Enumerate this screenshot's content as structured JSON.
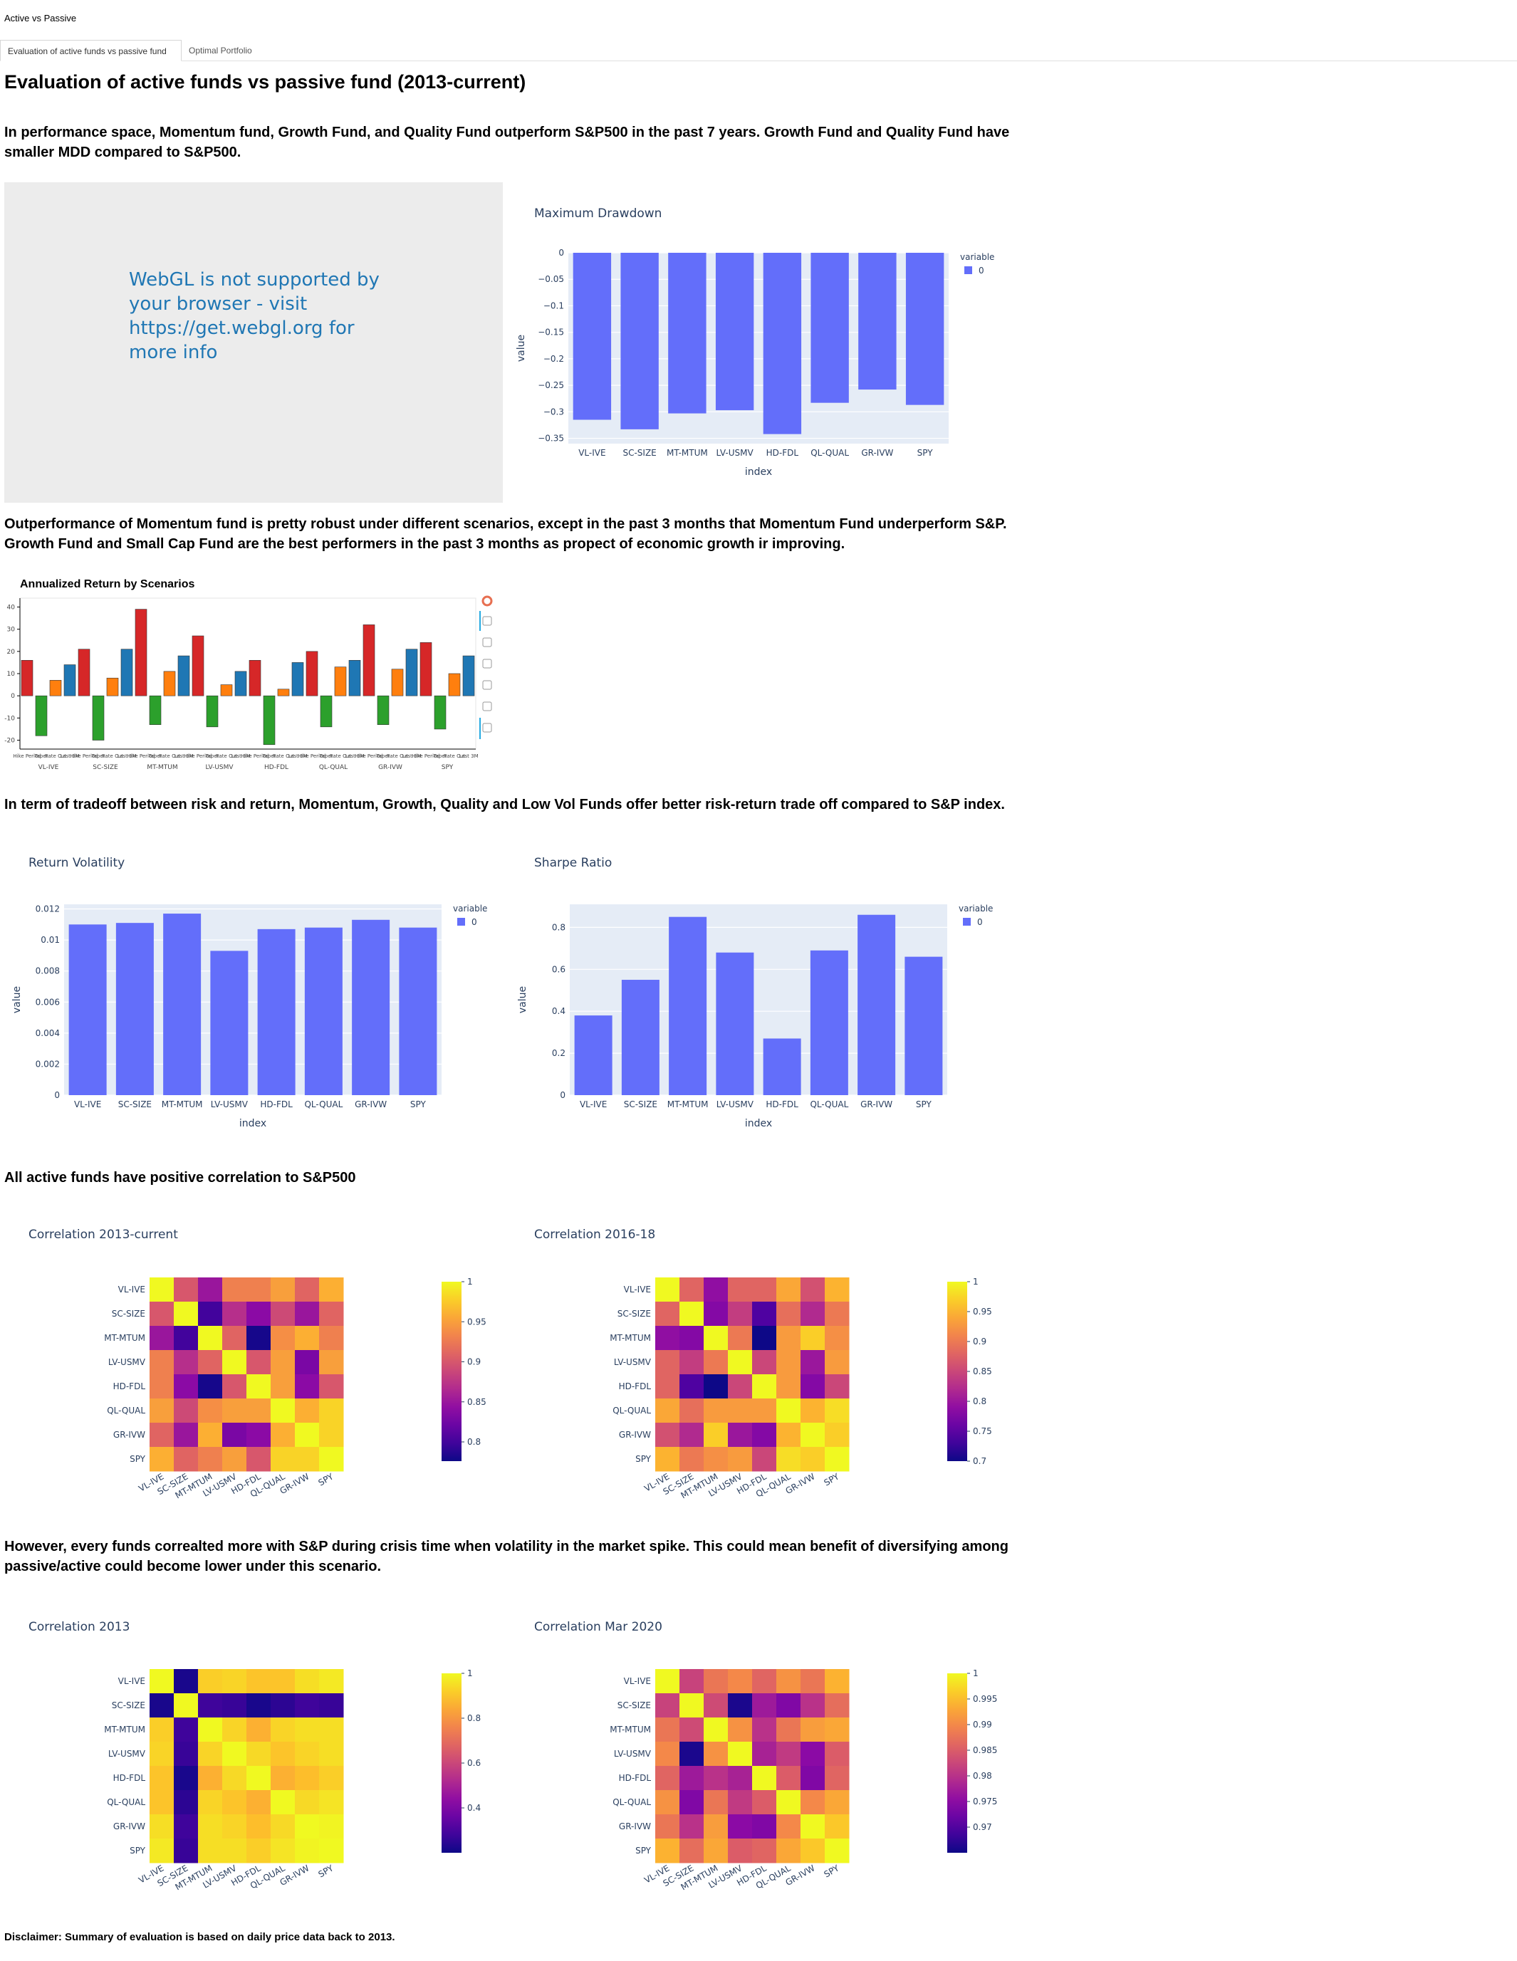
{
  "app": {
    "title": "Active vs Passive"
  },
  "tabs": [
    {
      "label": "Evaluation of active funds vs passive fund",
      "active": true
    },
    {
      "label": "Optimal Portfolio",
      "active": false
    }
  ],
  "page": {
    "heading": "Evaluation of active funds vs passive fund (2013-current)",
    "para1": "In performance space, Momentum fund, Growth Fund, and Quality Fund outperform S&P500 in the past 7 years. Growth Fund and Quality Fund have smaller MDD compared to S&P500.",
    "webgl_message": "WebGL is not supported by your browser - visit https://get.webgl.org for more info",
    "para2": "Outperformance of Momentum fund is pretty robust under different scenarios, except in the past 3 months that Momentum Fund underperform S&P. Growth Fund and Small Cap Fund are the best performers in the past 3 months as propect of economic growth ir improving.",
    "para3": "In term of tradeoff between risk and return, Momentum, Growth, Quality and Low Vol Funds offer better risk-return trade off compared to S&P index.",
    "para4": "All active funds have positive correlation to S&P500",
    "para5": "However, every funds correalted more with S&P during crisis time when volatility in the market spike. This could mean benefit of diversifying among passive/active could become lower under this scenario.",
    "disclaimer": "Disclaimer: Summary of evaluation is based on daily price data back to 2013."
  },
  "colors": {
    "plotly_bar": "#636efa",
    "plot_bg": "#e5ecf6",
    "text": "#2a3f5f",
    "scenario": [
      "#d62728",
      "#2ca02c",
      "#ff7f0e",
      "#1f77b4"
    ]
  },
  "chart_data": [
    {
      "id": "mdd",
      "type": "bar",
      "title": "Maximum Drawdown",
      "xlabel": "index",
      "ylabel": "value",
      "legend_title": "variable",
      "categories": [
        "VL-IVE",
        "SC-SIZE",
        "MT-MTUM",
        "LV-USMV",
        "HD-FDL",
        "QL-QUAL",
        "GR-IVW",
        "SPY"
      ],
      "series": [
        {
          "name": "0",
          "values": [
            -0.315,
            -0.333,
            -0.303,
            -0.297,
            -0.342,
            -0.283,
            -0.258,
            -0.287
          ]
        }
      ],
      "ylim": [
        -0.36,
        0.0
      ],
      "ticks": [
        0,
        -0.05,
        -0.1,
        -0.15,
        -0.2,
        -0.25,
        -0.3,
        -0.35
      ],
      "tick_labels": [
        "0",
        "−0.05",
        "−0.1",
        "−0.15",
        "−0.2",
        "−0.25",
        "−0.3",
        "−0.35"
      ]
    },
    {
      "id": "scenarios",
      "type": "bar",
      "title": "Annualized Return by Scenarios",
      "groups": [
        "VL-IVE",
        "SC-SIZE",
        "MT-MTUM",
        "LV-USMV",
        "HD-FDL",
        "QL-QUAL",
        "GR-IVW",
        "SPY"
      ],
      "sub_labels": [
        "Hike Period",
        "Taper",
        "Rate Cut",
        "Last 3M"
      ],
      "series": [
        {
          "values": [
            16,
            21,
            39,
            27,
            16,
            20,
            32,
            24
          ]
        },
        {
          "values": [
            -18,
            -20,
            -13,
            -14,
            -22,
            -14,
            -13,
            -15
          ]
        },
        {
          "values": [
            7,
            8,
            11,
            5,
            3,
            13,
            12,
            10
          ]
        },
        {
          "values": [
            14,
            21,
            18,
            11,
            15,
            16,
            21,
            18
          ]
        }
      ],
      "ylim": [
        -24,
        44
      ],
      "ticks": [
        40,
        30,
        20,
        10,
        0,
        -10,
        -20
      ]
    },
    {
      "id": "vol",
      "type": "bar",
      "title": "Return Volatility",
      "xlabel": "index",
      "ylabel": "value",
      "legend_title": "variable",
      "categories": [
        "VL-IVE",
        "SC-SIZE",
        "MT-MTUM",
        "LV-USMV",
        "HD-FDL",
        "QL-QUAL",
        "GR-IVW",
        "SPY"
      ],
      "series": [
        {
          "name": "0",
          "values": [
            0.011,
            0.0111,
            0.0117,
            0.0093,
            0.0107,
            0.0108,
            0.0113,
            0.0108
          ]
        }
      ],
      "ylim": [
        0,
        0.0123
      ],
      "ticks": [
        0,
        0.002,
        0.004,
        0.006,
        0.008,
        0.01,
        0.012
      ],
      "tick_labels": [
        "0",
        "0.002",
        "0.004",
        "0.006",
        "0.008",
        "0.01",
        "0.012"
      ]
    },
    {
      "id": "sharpe",
      "type": "bar",
      "title": "Sharpe Ratio",
      "xlabel": "index",
      "ylabel": "value",
      "legend_title": "variable",
      "categories": [
        "VL-IVE",
        "SC-SIZE",
        "MT-MTUM",
        "LV-USMV",
        "HD-FDL",
        "QL-QUAL",
        "GR-IVW",
        "SPY"
      ],
      "series": [
        {
          "name": "0",
          "values": [
            0.38,
            0.55,
            0.85,
            0.68,
            0.27,
            0.69,
            0.86,
            0.66
          ]
        }
      ],
      "ylim": [
        0,
        0.91
      ],
      "ticks": [
        0,
        0.2,
        0.4,
        0.6,
        0.8
      ],
      "tick_labels": [
        "0",
        "0.2",
        "0.4",
        "0.6",
        "0.8"
      ]
    },
    {
      "id": "corr1",
      "type": "heatmap",
      "title": "Correlation 2013-current",
      "labels": [
        "VL-IVE",
        "SC-SIZE",
        "MT-MTUM",
        "LV-USMV",
        "HD-FDL",
        "QL-QUAL",
        "GR-IVW",
        "SPY"
      ],
      "zrange": [
        0.776,
        1.0
      ],
      "colorbar_ticks": [
        1,
        0.95,
        0.9,
        0.85,
        0.8
      ],
      "values": [
        [
          1.0,
          0.9,
          0.85,
          0.93,
          0.93,
          0.95,
          0.91,
          0.96
        ],
        [
          0.9,
          1.0,
          0.8,
          0.87,
          0.84,
          0.89,
          0.85,
          0.91
        ],
        [
          0.85,
          0.8,
          1.0,
          0.91,
          0.78,
          0.94,
          0.96,
          0.93
        ],
        [
          0.93,
          0.87,
          0.91,
          1.0,
          0.9,
          0.95,
          0.83,
          0.95
        ],
        [
          0.93,
          0.84,
          0.78,
          0.9,
          1.0,
          0.95,
          0.84,
          0.9
        ],
        [
          0.95,
          0.89,
          0.94,
          0.95,
          0.95,
          1.0,
          0.96,
          0.98
        ],
        [
          0.91,
          0.85,
          0.96,
          0.83,
          0.84,
          0.96,
          1.0,
          0.98
        ],
        [
          0.96,
          0.91,
          0.93,
          0.95,
          0.9,
          0.98,
          0.98,
          1.0
        ]
      ]
    },
    {
      "id": "corr2",
      "type": "heatmap",
      "title": "Correlation 2016-18",
      "labels": [
        "VL-IVE",
        "SC-SIZE",
        "MT-MTUM",
        "LV-USMV",
        "HD-FDL",
        "QL-QUAL",
        "GR-IVW",
        "SPY"
      ],
      "zrange": [
        0.7,
        1.0
      ],
      "colorbar_ticks": [
        1,
        0.95,
        0.9,
        0.85,
        0.8,
        0.75,
        0.7
      ],
      "values": [
        [
          1.0,
          0.88,
          0.79,
          0.88,
          0.88,
          0.94,
          0.86,
          0.95
        ],
        [
          0.88,
          1.0,
          0.78,
          0.84,
          0.74,
          0.89,
          0.82,
          0.9
        ],
        [
          0.79,
          0.78,
          1.0,
          0.9,
          0.7,
          0.93,
          0.97,
          0.92
        ],
        [
          0.88,
          0.84,
          0.9,
          1.0,
          0.85,
          0.93,
          0.8,
          0.93
        ],
        [
          0.88,
          0.74,
          0.7,
          0.85,
          1.0,
          0.93,
          0.78,
          0.85
        ],
        [
          0.94,
          0.89,
          0.93,
          0.93,
          0.93,
          1.0,
          0.95,
          0.98
        ],
        [
          0.86,
          0.82,
          0.97,
          0.8,
          0.78,
          0.95,
          1.0,
          0.97
        ],
        [
          0.95,
          0.9,
          0.92,
          0.93,
          0.85,
          0.98,
          0.97,
          1.0
        ]
      ]
    },
    {
      "id": "corr3",
      "type": "heatmap",
      "title": "Correlation 2013",
      "labels": [
        "VL-IVE",
        "SC-SIZE",
        "MT-MTUM",
        "LV-USMV",
        "HD-FDL",
        "QL-QUAL",
        "GR-IVW",
        "SPY"
      ],
      "zrange": [
        0.2,
        1.0
      ],
      "colorbar_ticks": [
        1,
        0.8,
        0.6,
        0.4
      ],
      "values": [
        [
          1.0,
          0.22,
          0.92,
          0.93,
          0.9,
          0.9,
          0.95,
          0.97
        ],
        [
          0.22,
          1.0,
          0.28,
          0.27,
          0.22,
          0.25,
          0.28,
          0.27
        ],
        [
          0.92,
          0.28,
          1.0,
          0.93,
          0.86,
          0.93,
          0.95,
          0.95
        ],
        [
          0.93,
          0.27,
          0.93,
          1.0,
          0.94,
          0.9,
          0.93,
          0.95
        ],
        [
          0.9,
          0.22,
          0.86,
          0.94,
          1.0,
          0.86,
          0.89,
          0.92
        ],
        [
          0.9,
          0.25,
          0.93,
          0.9,
          0.86,
          1.0,
          0.94,
          0.96
        ],
        [
          0.95,
          0.28,
          0.95,
          0.93,
          0.89,
          0.94,
          1.0,
          0.99
        ],
        [
          0.97,
          0.27,
          0.95,
          0.95,
          0.92,
          0.96,
          0.99,
          1.0
        ]
      ]
    },
    {
      "id": "corr4",
      "type": "heatmap",
      "title": "Correlation Mar 2020",
      "labels": [
        "VL-IVE",
        "SC-SIZE",
        "MT-MTUM",
        "LV-USMV",
        "HD-FDL",
        "QL-QUAL",
        "GR-IVW",
        "SPY"
      ],
      "zrange": [
        0.965,
        1.0
      ],
      "colorbar_ticks": [
        1,
        0.995,
        0.99,
        0.985,
        0.98,
        0.975,
        0.97
      ],
      "values": [
        [
          1.0,
          0.982,
          0.988,
          0.99,
          0.986,
          0.991,
          0.988,
          0.994
        ],
        [
          0.982,
          1.0,
          0.983,
          0.966,
          0.977,
          0.974,
          0.98,
          0.987
        ],
        [
          0.988,
          0.983,
          1.0,
          0.991,
          0.98,
          0.988,
          0.992,
          0.993
        ],
        [
          0.99,
          0.966,
          0.991,
          1.0,
          0.978,
          0.981,
          0.975,
          0.985
        ],
        [
          0.986,
          0.977,
          0.98,
          0.978,
          1.0,
          0.985,
          0.974,
          0.986
        ],
        [
          0.991,
          0.974,
          0.988,
          0.981,
          0.985,
          1.0,
          0.99,
          0.993
        ],
        [
          0.988,
          0.98,
          0.992,
          0.975,
          0.974,
          0.99,
          1.0,
          0.996
        ],
        [
          0.994,
          0.987,
          0.993,
          0.985,
          0.986,
          0.993,
          0.996,
          1.0
        ]
      ]
    }
  ]
}
